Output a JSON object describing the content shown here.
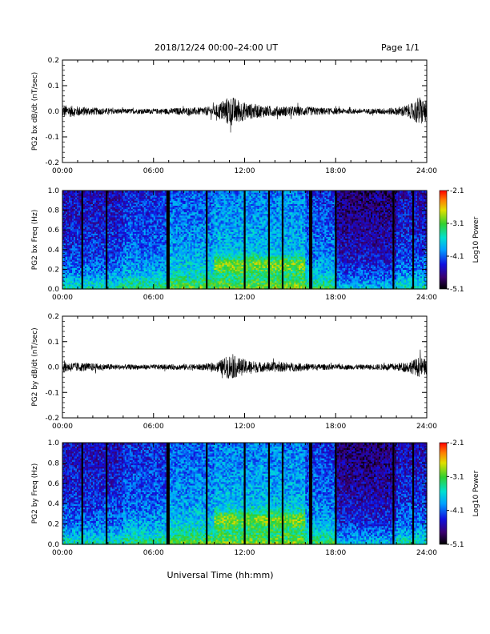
{
  "header": {
    "title": "2018/12/24  00:00–24:00 UT",
    "page": "Page 1/1"
  },
  "xlabel": "Universal Time (hh:mm)",
  "chart_data": [
    {
      "type": "line",
      "ylabel": "PG2 bx dB/dt (nT/sec)",
      "xlim": [
        0,
        24
      ],
      "ylim": [
        -0.2,
        0.2
      ],
      "x_ticks": [
        "00:00",
        "06:00",
        "12:00",
        "18:00",
        "24:00"
      ],
      "y_ticks": [
        "-0.2",
        "-0.1",
        "0.0",
        "0.1",
        "0.2"
      ],
      "envelope": {
        "hours": [
          0,
          1,
          2,
          3,
          4,
          5,
          6,
          7,
          8,
          9,
          10,
          10.5,
          11,
          11.5,
          12,
          12.5,
          13,
          14,
          15,
          16,
          17,
          18,
          19,
          20,
          21,
          22,
          23,
          23.5,
          24
        ],
        "amplitude": [
          0.025,
          0.02,
          0.015,
          0.012,
          0.01,
          0.01,
          0.01,
          0.012,
          0.015,
          0.015,
          0.02,
          0.04,
          0.06,
          0.05,
          0.035,
          0.03,
          0.025,
          0.02,
          0.02,
          0.018,
          0.015,
          0.012,
          0.01,
          0.01,
          0.012,
          0.015,
          0.03,
          0.06,
          0.04
        ]
      }
    },
    {
      "type": "heatmap",
      "ylabel": "PG2 bx Freq (Hz)",
      "xlim": [
        0,
        24
      ],
      "ylim": [
        0,
        1
      ],
      "x_ticks": [
        "00:00",
        "06:00",
        "12:00",
        "18:00",
        "24:00"
      ],
      "y_ticks": [
        "0.0",
        "0.2",
        "0.4",
        "0.6",
        "0.8",
        "1.0"
      ],
      "colorbar": {
        "label": "Log10 Power",
        "range": [
          -5.1,
          -2.1
        ],
        "ticks": [
          "-2.1",
          "-3.1",
          "-4.1",
          "-5.1"
        ]
      },
      "gaps_hours": [
        1.3,
        2.9,
        6.9,
        7.0,
        9.5,
        12.0,
        13.6,
        14.5,
        16.3,
        16.4,
        18.0,
        21.8,
        23.1
      ]
    },
    {
      "type": "line",
      "ylabel": "PG2 by dB/dt (nT/sec)",
      "xlim": [
        0,
        24
      ],
      "ylim": [
        -0.2,
        0.2
      ],
      "x_ticks": [
        "00:00",
        "06:00",
        "12:00",
        "18:00",
        "24:00"
      ],
      "y_ticks": [
        "-0.2",
        "-0.1",
        "0.0",
        "0.1",
        "0.2"
      ],
      "envelope": {
        "hours": [
          0,
          1,
          2,
          3,
          4,
          5,
          6,
          7,
          8,
          9,
          10,
          10.5,
          11,
          11.5,
          12,
          12.5,
          13,
          14,
          15,
          16,
          17,
          18,
          19,
          20,
          21,
          22,
          23,
          23.5,
          24
        ],
        "amplitude": [
          0.02,
          0.018,
          0.015,
          0.012,
          0.01,
          0.01,
          0.01,
          0.01,
          0.012,
          0.012,
          0.015,
          0.03,
          0.05,
          0.04,
          0.03,
          0.025,
          0.02,
          0.02,
          0.018,
          0.015,
          0.012,
          0.01,
          0.01,
          0.01,
          0.012,
          0.015,
          0.025,
          0.04,
          0.03
        ]
      }
    },
    {
      "type": "heatmap",
      "ylabel": "PG2 by Freq (Hz)",
      "xlim": [
        0,
        24
      ],
      "ylim": [
        0,
        1
      ],
      "x_ticks": [
        "00:00",
        "06:00",
        "12:00",
        "18:00",
        "24:00"
      ],
      "y_ticks": [
        "0.0",
        "0.2",
        "0.4",
        "0.6",
        "0.8",
        "1.0"
      ],
      "colorbar": {
        "label": "Log10 Power",
        "range": [
          -5.1,
          -2.1
        ],
        "ticks": [
          "-2.1",
          "-3.1",
          "-4.1",
          "-5.1"
        ]
      },
      "gaps_hours": [
        1.3,
        2.9,
        6.9,
        7.0,
        9.5,
        12.0,
        13.6,
        14.5,
        16.3,
        16.4,
        18.0,
        21.8,
        23.1
      ]
    }
  ]
}
